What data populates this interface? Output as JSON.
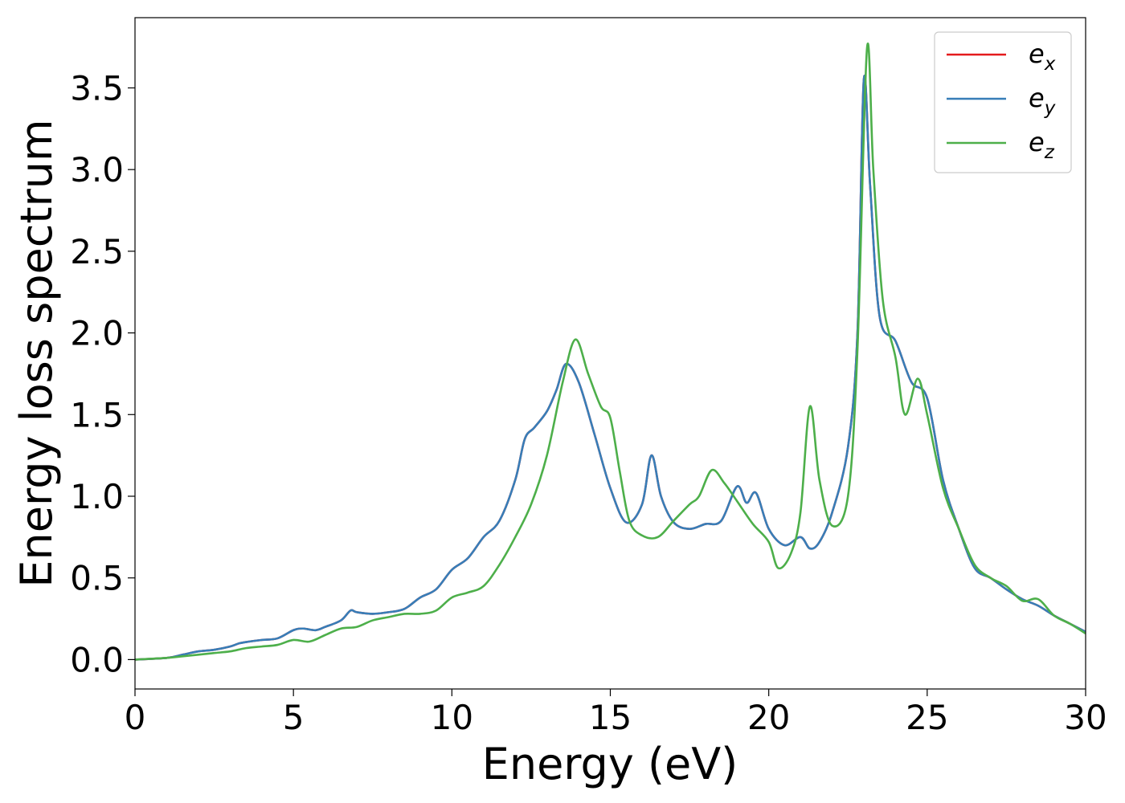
{
  "chart_data": {
    "type": "line",
    "xlabel": "Energy (eV)",
    "ylabel": "Energy loss spectrum",
    "xlim": [
      0,
      30
    ],
    "ylim": [
      -0.18,
      3.93
    ],
    "xticks": [
      0,
      5,
      10,
      15,
      20,
      25,
      30
    ],
    "xtick_labels": [
      "0",
      "5",
      "10",
      "15",
      "20",
      "25",
      "30"
    ],
    "yticks": [
      0.0,
      0.5,
      1.0,
      1.5,
      2.0,
      2.5,
      3.0,
      3.5
    ],
    "ytick_labels": [
      "0.0",
      "0.5",
      "1.0",
      "1.5",
      "2.0",
      "2.5",
      "3.0",
      "3.5"
    ],
    "grid": false,
    "legend": {
      "placement": "top-right"
    },
    "series": [
      {
        "name": "e_x",
        "legend_base": "e",
        "legend_sub": "x",
        "color": "#e41a1c",
        "x": [
          0,
          1,
          1.5,
          2,
          2.5,
          3,
          3.3,
          3.6,
          4,
          4.5,
          5,
          5.3,
          5.7,
          6,
          6.5,
          6.8,
          7,
          7.5,
          8,
          8.5,
          9,
          9.5,
          10,
          10.5,
          11,
          11.5,
          12,
          12.3,
          12.6,
          13,
          13.3,
          13.6,
          14,
          14.5,
          15,
          15.5,
          16,
          16.3,
          16.6,
          17,
          17.5,
          18,
          18.5,
          19,
          19.3,
          19.6,
          20,
          20.5,
          21,
          21.3,
          21.6,
          22,
          22.5,
          22.8,
          23,
          23.2,
          23.5,
          24,
          24.5,
          25,
          25.5,
          26,
          26.5,
          27,
          27.5,
          28,
          28.5,
          29,
          29.5,
          30
        ],
        "y": [
          0.0,
          0.01,
          0.03,
          0.05,
          0.06,
          0.08,
          0.1,
          0.11,
          0.12,
          0.13,
          0.18,
          0.19,
          0.18,
          0.2,
          0.24,
          0.3,
          0.29,
          0.28,
          0.29,
          0.31,
          0.38,
          0.43,
          0.55,
          0.62,
          0.75,
          0.85,
          1.1,
          1.35,
          1.42,
          1.52,
          1.65,
          1.81,
          1.7,
          1.38,
          1.05,
          0.84,
          0.95,
          1.25,
          1.0,
          0.84,
          0.8,
          0.83,
          0.85,
          1.06,
          0.96,
          1.02,
          0.8,
          0.7,
          0.75,
          0.68,
          0.72,
          0.9,
          1.3,
          2.0,
          3.55,
          2.9,
          2.1,
          1.95,
          1.7,
          1.6,
          1.1,
          0.8,
          0.56,
          0.5,
          0.43,
          0.37,
          0.33,
          0.27,
          0.22,
          0.17
        ]
      },
      {
        "name": "e_y",
        "legend_base": "e",
        "legend_sub": "y",
        "color": "#377eb8",
        "x": [
          0,
          1,
          1.5,
          2,
          2.5,
          3,
          3.3,
          3.6,
          4,
          4.5,
          5,
          5.3,
          5.7,
          6,
          6.5,
          6.8,
          7,
          7.5,
          8,
          8.5,
          9,
          9.5,
          10,
          10.5,
          11,
          11.5,
          12,
          12.3,
          12.6,
          13,
          13.3,
          13.6,
          14,
          14.5,
          15,
          15.5,
          16,
          16.3,
          16.6,
          17,
          17.5,
          18,
          18.5,
          19,
          19.3,
          19.6,
          20,
          20.5,
          21,
          21.3,
          21.6,
          22,
          22.5,
          22.8,
          23,
          23.2,
          23.5,
          24,
          24.5,
          25,
          25.5,
          26,
          26.5,
          27,
          27.5,
          28,
          28.5,
          29,
          29.5,
          30
        ],
        "y": [
          0.0,
          0.01,
          0.03,
          0.05,
          0.06,
          0.08,
          0.1,
          0.11,
          0.12,
          0.13,
          0.18,
          0.19,
          0.18,
          0.2,
          0.24,
          0.3,
          0.29,
          0.28,
          0.29,
          0.31,
          0.38,
          0.43,
          0.55,
          0.62,
          0.75,
          0.85,
          1.1,
          1.35,
          1.42,
          1.52,
          1.65,
          1.81,
          1.7,
          1.38,
          1.05,
          0.84,
          0.95,
          1.25,
          1.0,
          0.84,
          0.8,
          0.83,
          0.85,
          1.06,
          0.96,
          1.02,
          0.8,
          0.7,
          0.75,
          0.68,
          0.72,
          0.9,
          1.3,
          2.0,
          3.55,
          2.9,
          2.1,
          1.95,
          1.7,
          1.6,
          1.1,
          0.8,
          0.56,
          0.5,
          0.43,
          0.37,
          0.33,
          0.27,
          0.22,
          0.17
        ]
      },
      {
        "name": "e_z",
        "legend_base": "e",
        "legend_sub": "z",
        "color": "#4daf4a",
        "x": [
          0,
          1,
          1.5,
          2,
          2.5,
          3,
          3.5,
          4,
          4.5,
          5,
          5.5,
          6,
          6.5,
          7,
          7.5,
          8,
          8.5,
          9,
          9.5,
          10,
          10.5,
          11,
          11.5,
          12,
          12.5,
          13,
          13.5,
          13.9,
          14.3,
          14.7,
          15,
          15.3,
          15.6,
          16,
          16.5,
          17,
          17.5,
          17.8,
          18.2,
          18.6,
          19,
          19.5,
          20,
          20.3,
          20.7,
          21,
          21.3,
          21.6,
          22,
          22.5,
          22.8,
          23.1,
          23.3,
          23.6,
          24,
          24.3,
          24.7,
          25,
          25.5,
          26,
          26.5,
          27,
          27.5,
          28,
          28.5,
          29,
          29.5,
          30
        ],
        "y": [
          0.0,
          0.01,
          0.02,
          0.03,
          0.04,
          0.05,
          0.07,
          0.08,
          0.09,
          0.12,
          0.11,
          0.15,
          0.19,
          0.2,
          0.24,
          0.26,
          0.28,
          0.28,
          0.3,
          0.38,
          0.41,
          0.45,
          0.58,
          0.75,
          0.95,
          1.25,
          1.7,
          1.96,
          1.75,
          1.55,
          1.48,
          1.15,
          0.85,
          0.76,
          0.75,
          0.85,
          0.95,
          1.0,
          1.16,
          1.08,
          0.97,
          0.83,
          0.72,
          0.56,
          0.65,
          0.9,
          1.55,
          1.1,
          0.82,
          1.0,
          1.9,
          3.74,
          3.0,
          2.2,
          1.85,
          1.5,
          1.72,
          1.5,
          1.05,
          0.8,
          0.58,
          0.5,
          0.45,
          0.36,
          0.37,
          0.27,
          0.22,
          0.16
        ]
      }
    ]
  }
}
